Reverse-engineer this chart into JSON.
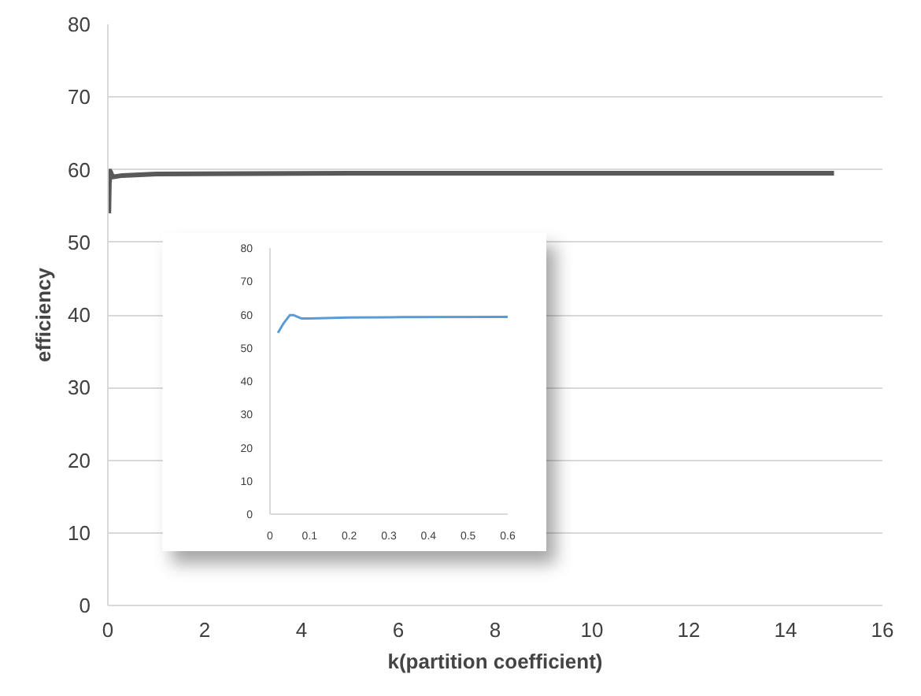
{
  "chart_data": [
    {
      "type": "line",
      "xlabel": "k(partition coefficient)",
      "ylabel": "efficiency",
      "xlim": [
        0,
        16
      ],
      "ylim": [
        0,
        80
      ],
      "xticks": [
        0,
        2,
        4,
        6,
        8,
        10,
        12,
        14,
        16
      ],
      "yticks": [
        0,
        10,
        20,
        30,
        40,
        50,
        60,
        70,
        80
      ],
      "grid": "y",
      "series": [
        {
          "color": "#595959",
          "x": [
            0.02,
            0.03,
            0.05,
            0.1,
            0.3,
            1,
            5,
            15
          ],
          "values": [
            54,
            58,
            59.8,
            59,
            59.2,
            59.4,
            59.5,
            59.5
          ]
        }
      ]
    },
    {
      "type": "line",
      "xlim": [
        0,
        0.6
      ],
      "ylim": [
        0,
        80
      ],
      "xticks": [
        0,
        0.1,
        0.2,
        0.3,
        0.4,
        0.5,
        0.6
      ],
      "yticks": [
        0,
        10,
        20,
        30,
        40,
        50,
        60,
        70,
        80
      ],
      "series": [
        {
          "color": "#5b9bd5",
          "x": [
            0.02,
            0.035,
            0.05,
            0.06,
            0.08,
            0.1,
            0.2,
            0.3,
            0.6
          ],
          "values": [
            54.5,
            57.5,
            59.8,
            59.8,
            58.8,
            58.8,
            59.1,
            59.2,
            59.3
          ]
        }
      ]
    }
  ]
}
